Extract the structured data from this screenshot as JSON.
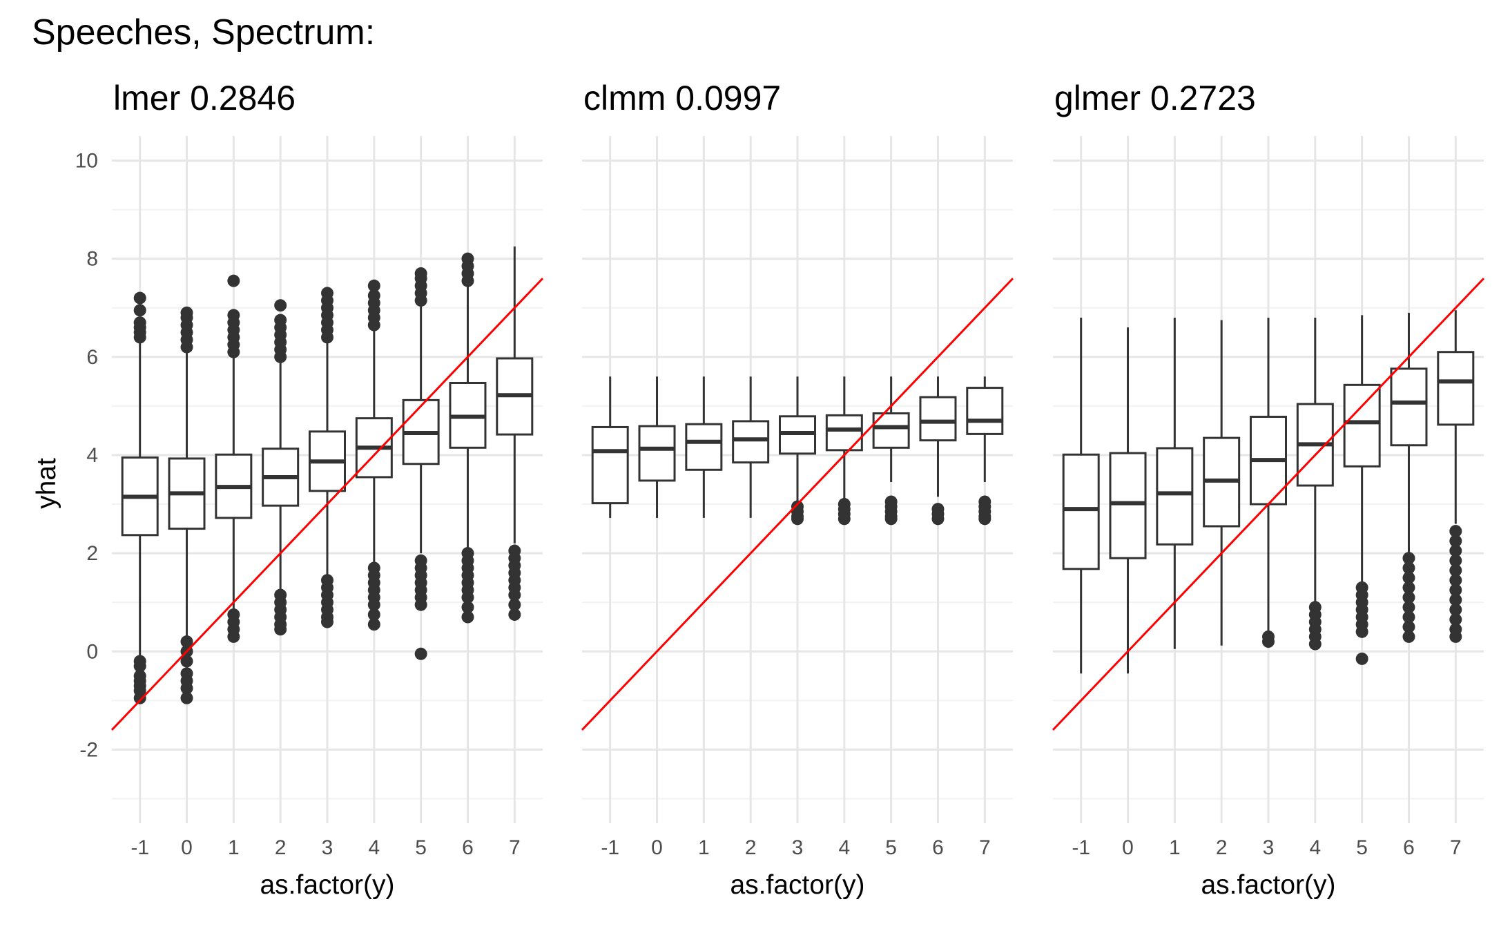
{
  "chart_data": {
    "type": "boxplot",
    "title": "Speeches, Spectrum:",
    "categories": [
      "-1",
      "0",
      "1",
      "2",
      "3",
      "4",
      "5",
      "6",
      "7"
    ],
    "ylabel": "yhat",
    "ylim": [
      -3.5,
      10.5
    ],
    "yticks": [
      -2,
      0,
      2,
      4,
      6,
      8,
      10
    ],
    "reference_line": {
      "intercept": 0,
      "slope": 1,
      "color": "#ff0000"
    },
    "panels": [
      {
        "title": "lmer 0.2846",
        "xlabel": "as.factor(y)",
        "boxes": [
          {
            "category": "-1",
            "lower_whisker": -0.1,
            "q1": 2.37,
            "median": 3.15,
            "q3": 3.95,
            "upper_whisker": 6.3,
            "outliers_high": [
              6.4,
              6.5,
              6.6,
              6.7,
              6.95,
              7.2
            ],
            "outliers_low": [
              -0.2,
              -0.3,
              -0.5,
              -0.6,
              -0.7,
              -0.8,
              -0.95
            ]
          },
          {
            "category": "0",
            "lower_whisker": 0.3,
            "q1": 2.5,
            "median": 3.22,
            "q3": 3.93,
            "upper_whisker": 6.1,
            "outliers_high": [
              6.2,
              6.35,
              6.5,
              6.65,
              6.8,
              6.9
            ],
            "outliers_low": [
              0.2,
              0.0,
              -0.2,
              -0.45,
              -0.6,
              -0.75,
              -0.95
            ]
          },
          {
            "category": "1",
            "lower_whisker": 0.8,
            "q1": 2.72,
            "median": 3.35,
            "q3": 4.01,
            "upper_whisker": 6.0,
            "outliers_high": [
              6.1,
              6.25,
              6.4,
              6.55,
              6.7,
              6.85,
              7.55
            ],
            "outliers_low": [
              0.75,
              0.6,
              0.45,
              0.3
            ]
          },
          {
            "category": "2",
            "lower_whisker": 1.2,
            "q1": 2.97,
            "median": 3.55,
            "q3": 4.13,
            "upper_whisker": 5.9,
            "outliers_high": [
              6.0,
              6.15,
              6.3,
              6.45,
              6.6,
              6.75,
              7.05
            ],
            "outliers_low": [
              1.15,
              1.0,
              0.85,
              0.7,
              0.55,
              0.45
            ]
          },
          {
            "category": "3",
            "lower_whisker": 1.5,
            "q1": 3.27,
            "median": 3.87,
            "q3": 4.48,
            "upper_whisker": 6.3,
            "outliers_high": [
              6.4,
              6.55,
              6.7,
              6.85,
              7.0,
              7.15,
              7.3
            ],
            "outliers_low": [
              1.45,
              1.3,
              1.15,
              1.0,
              0.85,
              0.7,
              0.6
            ]
          },
          {
            "category": "4",
            "lower_whisker": 1.8,
            "q1": 3.55,
            "median": 4.15,
            "q3": 4.75,
            "upper_whisker": 6.6,
            "outliers_high": [
              6.65,
              6.8,
              6.95,
              7.1,
              7.25,
              7.45
            ],
            "outliers_low": [
              1.7,
              1.55,
              1.4,
              1.25,
              1.1,
              0.95,
              0.75,
              0.55
            ]
          },
          {
            "category": "5",
            "lower_whisker": 2.0,
            "q1": 3.82,
            "median": 4.45,
            "q3": 5.12,
            "upper_whisker": 7.05,
            "outliers_high": [
              7.15,
              7.3,
              7.45,
              7.6,
              7.7
            ],
            "outliers_low": [
              1.85,
              1.7,
              1.55,
              1.4,
              1.25,
              1.1,
              0.95,
              -0.05
            ]
          },
          {
            "category": "6",
            "lower_whisker": 2.1,
            "q1": 4.15,
            "median": 4.78,
            "q3": 5.47,
            "upper_whisker": 7.45,
            "outliers_high": [
              7.55,
              7.7,
              7.85,
              8.0
            ],
            "outliers_low": [
              2.0,
              1.85,
              1.7,
              1.55,
              1.4,
              1.25,
              1.1,
              0.9,
              0.7
            ]
          },
          {
            "category": "7",
            "lower_whisker": 2.2,
            "q1": 4.42,
            "median": 5.22,
            "q3": 5.97,
            "upper_whisker": 8.25,
            "outliers_high": [],
            "outliers_low": [
              2.05,
              1.9,
              1.75,
              1.6,
              1.45,
              1.3,
              1.15,
              0.95,
              0.75
            ]
          }
        ]
      },
      {
        "title": "clmm 0.0997",
        "xlabel": "as.factor(y)",
        "boxes": [
          {
            "category": "-1",
            "lower_whisker": 2.72,
            "q1": 3.02,
            "median": 4.08,
            "q3": 4.57,
            "upper_whisker": 5.6,
            "outliers_high": [],
            "outliers_low": []
          },
          {
            "category": "0",
            "lower_whisker": 2.72,
            "q1": 3.48,
            "median": 4.13,
            "q3": 4.59,
            "upper_whisker": 5.6,
            "outliers_high": [],
            "outliers_low": []
          },
          {
            "category": "1",
            "lower_whisker": 2.72,
            "q1": 3.7,
            "median": 4.27,
            "q3": 4.63,
            "upper_whisker": 5.6,
            "outliers_high": [],
            "outliers_low": []
          },
          {
            "category": "2",
            "lower_whisker": 2.72,
            "q1": 3.85,
            "median": 4.32,
            "q3": 4.69,
            "upper_whisker": 5.6,
            "outliers_high": [],
            "outliers_low": []
          },
          {
            "category": "3",
            "lower_whisker": 3.05,
            "q1": 4.03,
            "median": 4.45,
            "q3": 4.79,
            "upper_whisker": 5.6,
            "outliers_high": [],
            "outliers_low": [
              2.95,
              2.85,
              2.75,
              2.7
            ]
          },
          {
            "category": "4",
            "lower_whisker": 3.05,
            "q1": 4.1,
            "median": 4.52,
            "q3": 4.81,
            "upper_whisker": 5.6,
            "outliers_high": [],
            "outliers_low": [
              3.0,
              2.9,
              2.8,
              2.7
            ]
          },
          {
            "category": "5",
            "lower_whisker": 3.45,
            "q1": 4.15,
            "median": 4.57,
            "q3": 4.85,
            "upper_whisker": 5.6,
            "outliers_high": [],
            "outliers_low": [
              3.05,
              2.95,
              2.85,
              2.75,
              2.7
            ]
          },
          {
            "category": "6",
            "lower_whisker": 3.15,
            "q1": 4.3,
            "median": 4.68,
            "q3": 5.18,
            "upper_whisker": 5.6,
            "outliers_high": [],
            "outliers_low": [
              2.9,
              2.8,
              2.7
            ]
          },
          {
            "category": "7",
            "lower_whisker": 3.45,
            "q1": 4.43,
            "median": 4.7,
            "q3": 5.37,
            "upper_whisker": 5.6,
            "outliers_high": [],
            "outliers_low": [
              3.05,
              2.95,
              2.85,
              2.75,
              2.7
            ]
          }
        ]
      },
      {
        "title": "glmer 0.2723",
        "xlabel": "as.factor(y)",
        "boxes": [
          {
            "category": "-1",
            "lower_whisker": -0.45,
            "q1": 1.68,
            "median": 2.9,
            "q3": 4.01,
            "upper_whisker": 6.8,
            "outliers_high": [],
            "outliers_low": []
          },
          {
            "category": "0",
            "lower_whisker": -0.45,
            "q1": 1.9,
            "median": 3.02,
            "q3": 4.04,
            "upper_whisker": 6.6,
            "outliers_high": [],
            "outliers_low": []
          },
          {
            "category": "1",
            "lower_whisker": 0.05,
            "q1": 2.18,
            "median": 3.22,
            "q3": 4.14,
            "upper_whisker": 6.8,
            "outliers_high": [],
            "outliers_low": []
          },
          {
            "category": "2",
            "lower_whisker": 0.12,
            "q1": 2.55,
            "median": 3.48,
            "q3": 4.35,
            "upper_whisker": 6.75,
            "outliers_high": [],
            "outliers_low": []
          },
          {
            "category": "3",
            "lower_whisker": 0.35,
            "q1": 3.0,
            "median": 3.9,
            "q3": 4.78,
            "upper_whisker": 6.8,
            "outliers_high": [],
            "outliers_low": [
              0.3,
              0.2
            ]
          },
          {
            "category": "4",
            "lower_whisker": 0.95,
            "q1": 3.38,
            "median": 4.22,
            "q3": 5.04,
            "upper_whisker": 6.8,
            "outliers_high": [],
            "outliers_low": [
              0.9,
              0.75,
              0.6,
              0.45,
              0.3,
              0.15
            ]
          },
          {
            "category": "5",
            "lower_whisker": 1.35,
            "q1": 3.77,
            "median": 4.67,
            "q3": 5.43,
            "upper_whisker": 6.85,
            "outliers_high": [],
            "outliers_low": [
              1.3,
              1.15,
              1.0,
              0.85,
              0.7,
              0.55,
              0.4,
              -0.15
            ]
          },
          {
            "category": "6",
            "lower_whisker": 2.0,
            "q1": 4.2,
            "median": 5.07,
            "q3": 5.76,
            "upper_whisker": 6.9,
            "outliers_high": [],
            "outliers_low": [
              1.9,
              1.7,
              1.5,
              1.3,
              1.1,
              0.9,
              0.7,
              0.5,
              0.3
            ]
          },
          {
            "category": "7",
            "lower_whisker": 2.6,
            "q1": 4.62,
            "median": 5.5,
            "q3": 6.1,
            "upper_whisker": 6.95,
            "outliers_high": [],
            "outliers_low": [
              2.45,
              2.25,
              2.05,
              1.85,
              1.65,
              1.45,
              1.25,
              1.05,
              0.85,
              0.65,
              0.45,
              0.3
            ]
          }
        ]
      }
    ]
  }
}
